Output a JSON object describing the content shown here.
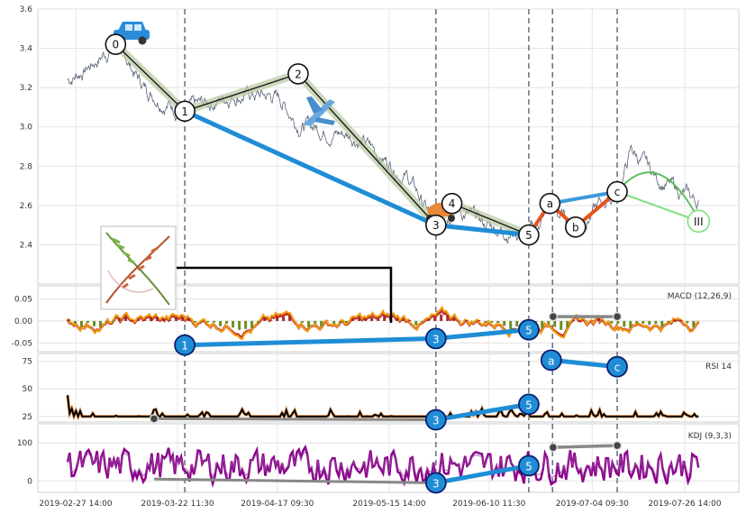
{
  "chart_data": {
    "type": "line",
    "x_ticks": [
      "2019-02-27 14:00",
      "2019-03-22 11:30",
      "2019-04-17 09:30",
      "2019-05-15 14:00",
      "2019-06-10 11:30",
      "2019-07-04 09:30",
      "2019-07-26 14:00"
    ],
    "colors": {
      "price": "#5a6478",
      "impulse": "#1f8dd6",
      "correction": "#e8521d",
      "abc_path": "#3b9ad8",
      "projection": "#7fe07f",
      "macd_fast": "#f39c12",
      "macd_slow": "#c0392b",
      "rsi": "#f4a460",
      "kdj": "#8b008b"
    },
    "panels": [
      {
        "name": "price",
        "ylim": [
          2.2,
          3.6
        ],
        "yticks": [
          "2.4",
          "2.6",
          "2.8",
          "3.0",
          "3.2",
          "3.4",
          "3.6"
        ],
        "waves": [
          {
            "label": "0",
            "x": 0.075,
            "y": 3.42
          },
          {
            "label": "1",
            "x": 0.183,
            "y": 3.08
          },
          {
            "label": "2",
            "x": 0.36,
            "y": 3.27
          },
          {
            "label": "3",
            "x": 0.575,
            "y": 2.5
          },
          {
            "label": "4",
            "x": 0.6,
            "y": 2.61
          },
          {
            "label": "5",
            "x": 0.72,
            "y": 2.45
          },
          {
            "label": "a",
            "x": 0.753,
            "y": 2.61
          },
          {
            "label": "b",
            "x": 0.793,
            "y": 2.49
          },
          {
            "label": "c",
            "x": 0.858,
            "y": 2.67
          },
          {
            "label": "III",
            "x": 0.985,
            "y": 2.52
          }
        ]
      },
      {
        "name": "macd",
        "label": "MACD (12,26,9)",
        "ylim": [
          -0.07,
          0.08
        ],
        "yticks": [
          "-0.05",
          "0.00",
          "0.05"
        ],
        "markers": [
          {
            "label": "1",
            "x": 0.183,
            "y": -0.055
          },
          {
            "label": "3",
            "x": 0.575,
            "y": -0.04
          },
          {
            "label": "5",
            "x": 0.72,
            "y": -0.02
          }
        ]
      },
      {
        "name": "rsi",
        "label": "RSI 14",
        "ylim": [
          20,
          82
        ],
        "yticks": [
          "25",
          "50",
          "75"
        ],
        "markers": [
          {
            "label": "3",
            "x": 0.575,
            "y": 22
          },
          {
            "label": "5",
            "x": 0.72,
            "y": 36
          },
          {
            "label": "a",
            "x": 0.755,
            "y": 76
          },
          {
            "label": "c",
            "x": 0.858,
            "y": 70
          }
        ]
      },
      {
        "name": "kdj",
        "label": "KDJ (9,3,3)",
        "ylim": [
          -30,
          150
        ],
        "yticks": [
          "0",
          "100"
        ],
        "markers": [
          {
            "label": "3",
            "x": 0.575,
            "y": -5
          },
          {
            "label": "5",
            "x": 0.72,
            "y": 40
          }
        ]
      }
    ]
  }
}
